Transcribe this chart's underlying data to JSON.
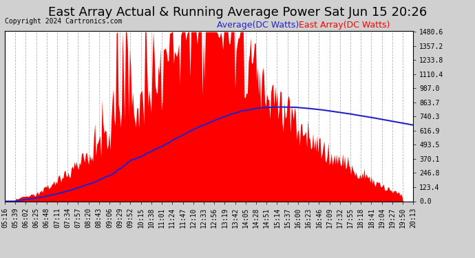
{
  "title": "East Array Actual & Running Average Power Sat Jun 15 20:26",
  "copyright": "Copyright 2024 Cartronics.com",
  "legend_avg": "Average(DC Watts)",
  "legend_east": "East Array(DC Watts)",
  "ylabel_right_ticks": [
    0.0,
    123.4,
    246.8,
    370.1,
    493.5,
    616.9,
    740.3,
    863.7,
    987.0,
    1110.4,
    1233.8,
    1357.2,
    1480.6
  ],
  "ymax": 1480.6,
  "ymin": 0.0,
  "fig_bg_color": "#d0d0d0",
  "plot_bg_color": "#ffffff",
  "east_color": "#ff0000",
  "avg_color": "#2222cc",
  "grid_color": "#aaaaaa",
  "x_labels": [
    "05:16",
    "05:39",
    "06:02",
    "06:25",
    "06:48",
    "07:11",
    "07:34",
    "07:57",
    "08:20",
    "08:43",
    "09:06",
    "09:29",
    "09:52",
    "10:15",
    "10:38",
    "11:01",
    "11:24",
    "11:47",
    "12:10",
    "12:33",
    "12:56",
    "13:19",
    "13:42",
    "14:05",
    "14:28",
    "14:51",
    "15:14",
    "15:37",
    "16:00",
    "16:23",
    "16:46",
    "17:09",
    "17:32",
    "17:55",
    "18:18",
    "18:41",
    "19:04",
    "19:27",
    "19:50",
    "20:13"
  ],
  "title_fontsize": 13,
  "tick_fontsize": 7,
  "copyright_fontsize": 7,
  "legend_fontsize": 9
}
